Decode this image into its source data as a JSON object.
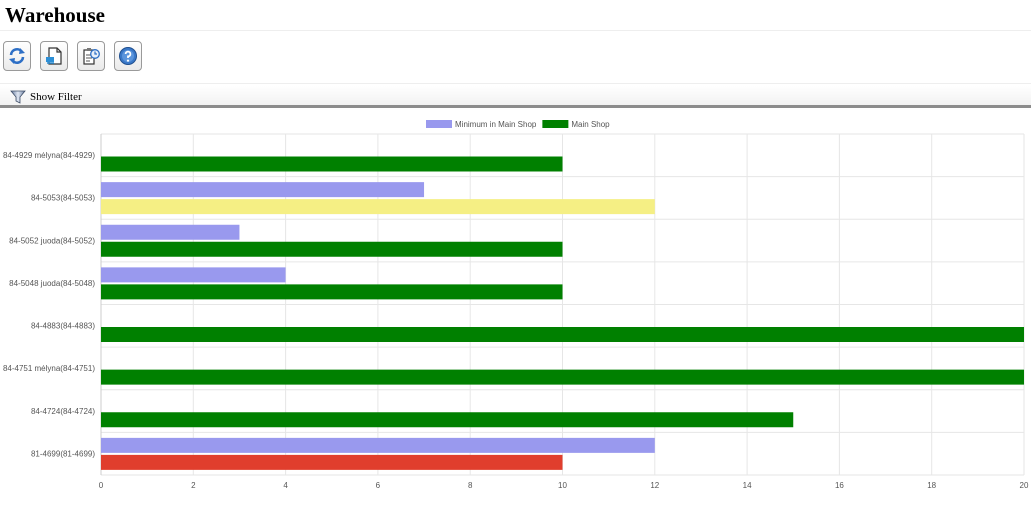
{
  "page": {
    "title": "Warehouse"
  },
  "toolbar": {
    "buttons": [
      {
        "name": "refresh-button",
        "icon": "refresh-icon"
      },
      {
        "name": "export-button",
        "icon": "export-document-icon"
      },
      {
        "name": "history-button",
        "icon": "clipboard-clock-icon"
      },
      {
        "name": "help-button",
        "icon": "help-icon"
      }
    ]
  },
  "filter": {
    "label": "Show Filter"
  },
  "colors": {
    "minimum": "#9999ee",
    "main": "#008000",
    "highlight_yellow": "#f5ef84",
    "highlight_red": "#e03e2d",
    "grid": "#e6e6e6",
    "axis_text": "#555555"
  },
  "chart_data": {
    "type": "bar",
    "orientation": "horizontal",
    "categories": [
      "84-4929 mėlyna(84-4929)",
      "84-5053(84-5053)",
      "84-5052 juoda(84-5052)",
      "84-5048 juoda(84-5048)",
      "84-4883(84-4883)",
      "84-4751 mėlyna(84-4751)",
      "84-4724(84-4724)",
      "81-4699(81-4699)"
    ],
    "series": [
      {
        "name": "Minimum in Main Shop",
        "color": "#9999ee",
        "values": [
          0,
          7,
          3,
          4,
          0,
          0,
          0,
          12
        ]
      },
      {
        "name": "Main Shop",
        "color": "#008000",
        "values": [
          10,
          12,
          10,
          10,
          20,
          20,
          15,
          10
        ],
        "point_colors": [
          "#008000",
          "#f5ef84",
          "#008000",
          "#008000",
          "#008000",
          "#008000",
          "#008000",
          "#e03e2d"
        ]
      }
    ],
    "xlim": [
      0,
      20
    ],
    "xticks": [
      0,
      2,
      4,
      6,
      8,
      10,
      12,
      14,
      16,
      18,
      20
    ],
    "legend_position": "top-center",
    "grid": true
  }
}
